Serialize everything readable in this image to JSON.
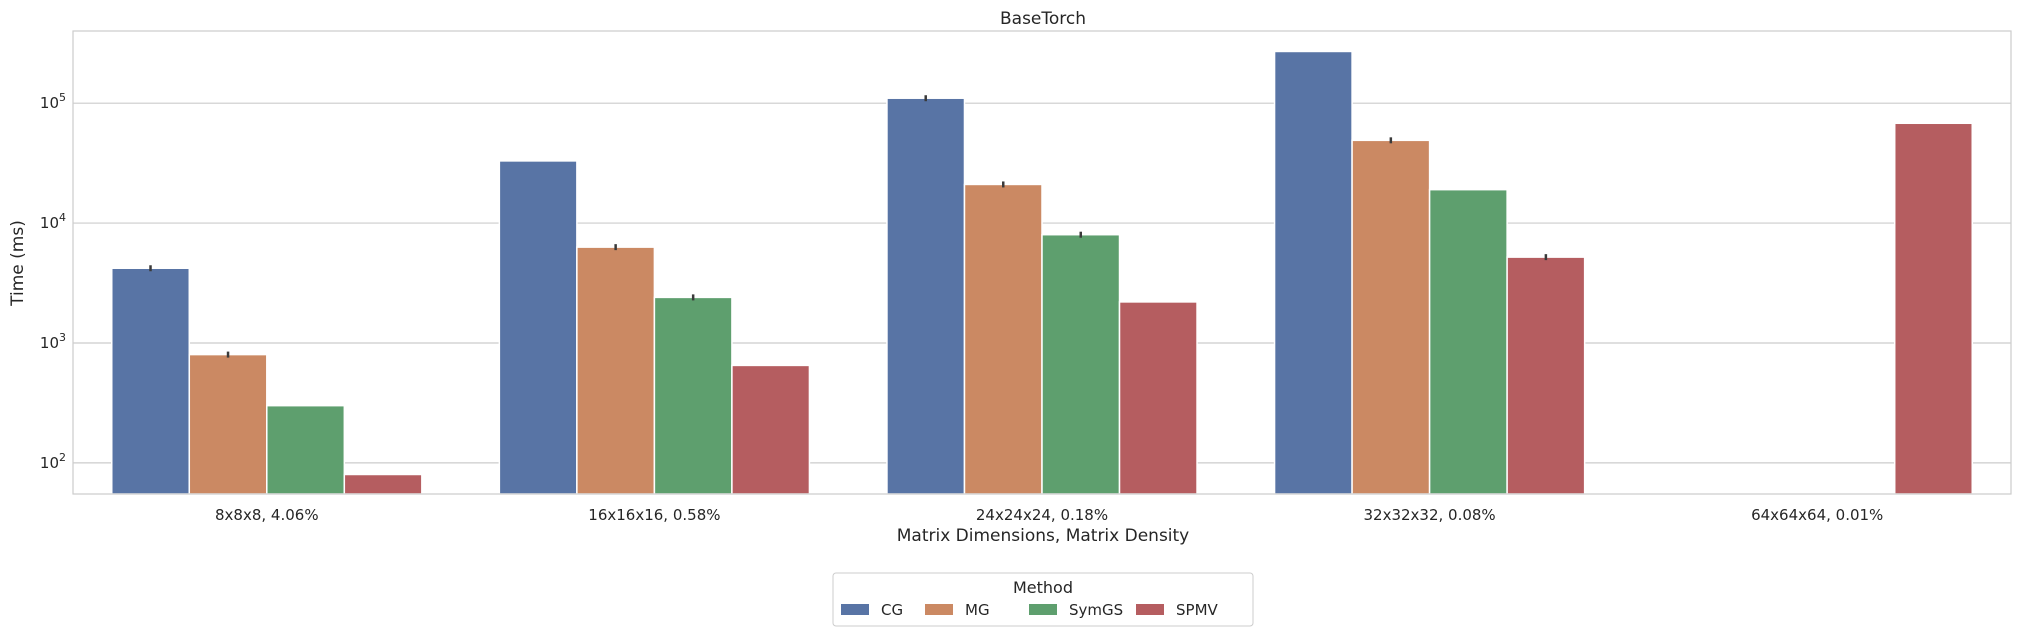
{
  "chart_data": {
    "type": "bar",
    "title": "BaseTorch",
    "xlabel": "Matrix Dimensions, Matrix Density",
    "ylabel": "Time (ms)",
    "yscale": "log",
    "ylim": [
      55,
      400000
    ],
    "y_ticks": [
      {
        "value": 100,
        "base": "10",
        "exp": "2"
      },
      {
        "value": 1000,
        "base": "10",
        "exp": "3"
      },
      {
        "value": 10000,
        "base": "10",
        "exp": "4"
      },
      {
        "value": 100000,
        "base": "10",
        "exp": "5"
      }
    ],
    "grid": true,
    "legend_position": "bottom-center",
    "legend_title": "Method",
    "categories": [
      "8x8x8, 4.06%",
      "16x16x16, 0.58%",
      "24x24x24, 0.18%",
      "32x32x32, 0.08%",
      "64x64x64, 0.01%"
    ],
    "series": [
      {
        "name": "CG",
        "color": "#5874a5",
        "values": [
          4200,
          33000,
          110000,
          270000,
          null
        ],
        "error_bars": [
          true,
          false,
          true,
          false,
          false
        ]
      },
      {
        "name": "MG",
        "color": "#cb8963",
        "values": [
          800,
          6300,
          21000,
          49000,
          null
        ],
        "error_bars": [
          true,
          true,
          true,
          true,
          false
        ]
      },
      {
        "name": "SymGS",
        "color": "#5e9f6e",
        "values": [
          300,
          2400,
          8000,
          19000,
          null
        ],
        "error_bars": [
          false,
          true,
          true,
          false,
          false
        ]
      },
      {
        "name": "SPMV",
        "color": "#b55d60",
        "values": [
          80,
          650,
          2200,
          5200,
          68000
        ],
        "error_bars": [
          false,
          false,
          false,
          true,
          false
        ]
      }
    ]
  }
}
